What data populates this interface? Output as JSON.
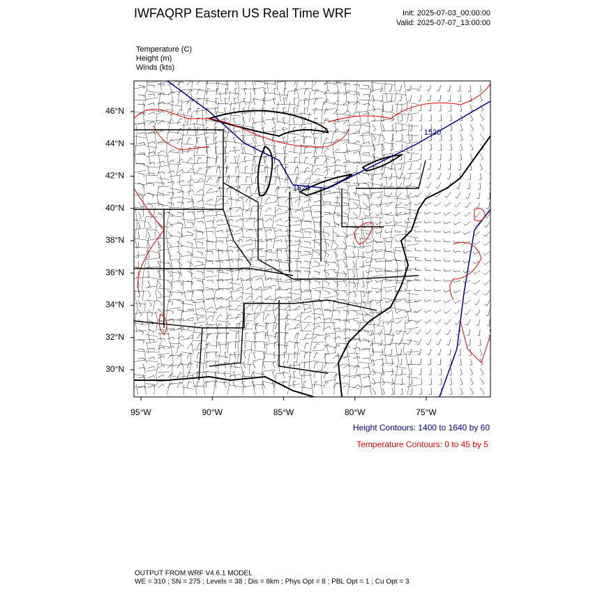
{
  "header": {
    "title": "IWFAQRP Eastern US Real Time WRF",
    "init": "Init: 2025-07-03_00:00:00",
    "valid": "Valid: 2025-07-07_13:00:00"
  },
  "fields": [
    "Temperature   (C)",
    "Height   (m)",
    "Winds   (kts)"
  ],
  "map": {
    "lat_labels": [
      {
        "value": 46,
        "label": "46°N"
      },
      {
        "value": 44,
        "label": "44°N"
      },
      {
        "value": 42,
        "label": "42°N"
      },
      {
        "value": 40,
        "label": "40°N"
      },
      {
        "value": 38,
        "label": "38°N"
      },
      {
        "value": 36,
        "label": "36°N"
      },
      {
        "value": 34,
        "label": "34°N"
      },
      {
        "value": 32,
        "label": "32°N"
      },
      {
        "value": 30,
        "label": "30°N"
      }
    ],
    "lon_labels": [
      {
        "value": -95,
        "label": "95°W"
      },
      {
        "value": -90,
        "label": "90°W"
      },
      {
        "value": -85,
        "label": "85°W"
      },
      {
        "value": -80,
        "label": "80°W"
      },
      {
        "value": -75,
        "label": "75°W"
      }
    ],
    "contour_labels": [
      "1520",
      "1520"
    ]
  },
  "legend": {
    "height": "Height Contours: 1400 to 1640 by 60",
    "temperature": "Temperature Contours: 0 to 45 by 5"
  },
  "footer": {
    "line1": "OUTPUT FROM WRF V4.6.1 MODEL",
    "line2": "WE = 310 ; SN = 275 ; Levels = 38 ; Dis = 8km ; Phys Opt = 8 ; PBL Opt = 1 ; Cu Opt = 3"
  }
}
